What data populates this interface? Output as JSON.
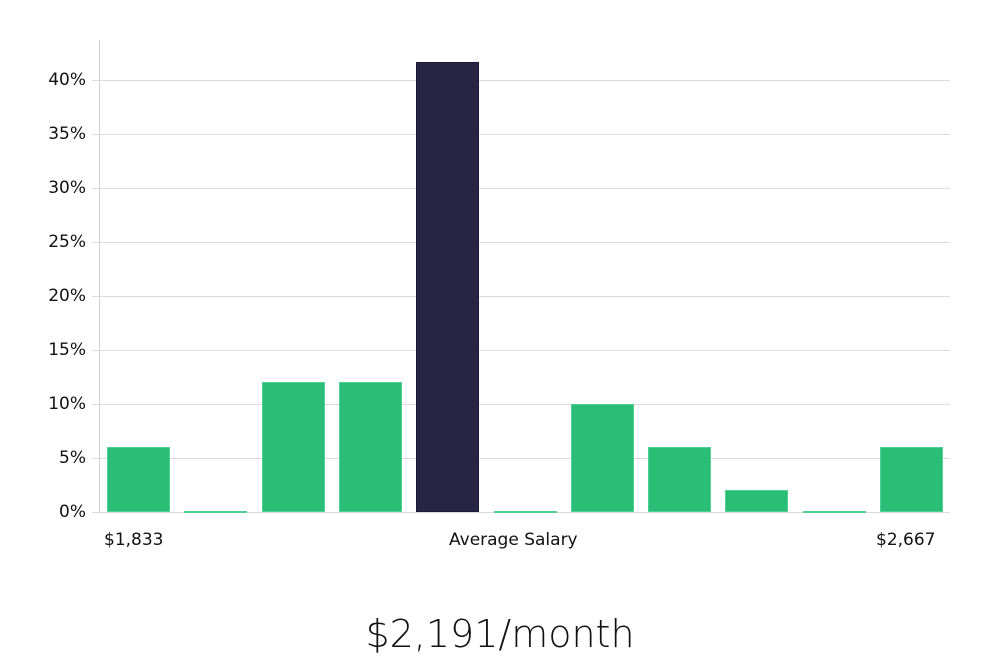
{
  "chart_data": {
    "type": "bar",
    "title": "",
    "xlabel": "Average Salary",
    "ylabel": "",
    "categories": [
      "bin1",
      "bin2",
      "bin3",
      "bin4",
      "bin5",
      "bin6",
      "bin7",
      "bin8",
      "bin9",
      "bin10",
      "bin11"
    ],
    "values": [
      6,
      0,
      12,
      12,
      41.7,
      0,
      10,
      6,
      2,
      0,
      6
    ],
    "highlight_index": 4,
    "ylim": [
      0,
      43
    ],
    "yticks": [
      "0%",
      "5%",
      "10%",
      "15%",
      "20%",
      "25%",
      "30%",
      "35%",
      "40%"
    ],
    "x_range_labels": {
      "min": "$1,833",
      "center": "Average Salary",
      "max": "$2,667"
    },
    "grid": true,
    "legend": "none"
  },
  "colors": {
    "bar": "#2abd75",
    "highlight": "#272444",
    "grid": "#dcdcdc"
  },
  "summary": {
    "value": "$2,191/month"
  }
}
